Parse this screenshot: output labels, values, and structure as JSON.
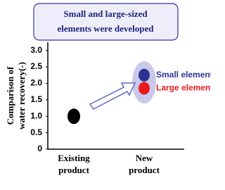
{
  "chart_data": {
    "type": "scatter",
    "title": [
      "Small and large-sized",
      "elements were developed"
    ],
    "ylabel": [
      "Comparison of",
      "water recovery(-)"
    ],
    "categories": [
      [
        "Existing",
        "product"
      ],
      [
        "New",
        "product"
      ]
    ],
    "series": [
      {
        "color": "#000000",
        "values": [
          1.0,
          null
        ]
      },
      {
        "name": "Small element",
        "color": "#2e3192",
        "values": [
          null,
          2.25
        ]
      },
      {
        "name": "Large element",
        "color": "#e8191e",
        "values": [
          null,
          1.85
        ]
      }
    ],
    "ylim": [
      0,
      3.25
    ],
    "yticks": [
      0,
      0.5,
      {
        "value": 1,
        "label": "1.0"
      },
      1.5,
      {
        "value": 2,
        "label": "2.0"
      },
      2.5,
      {
        "value": 3,
        "label": "3.0"
      }
    ]
  }
}
